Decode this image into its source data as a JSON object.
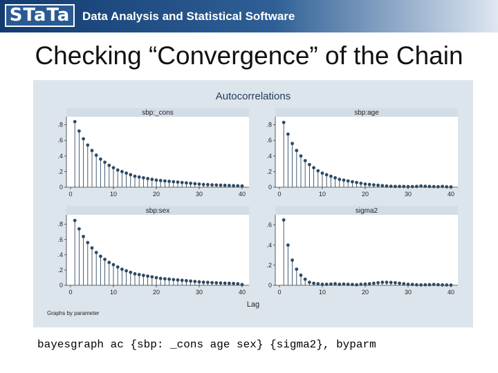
{
  "header": {
    "logo_text": "STaTa",
    "tagline": "Data Analysis and Statistical Software"
  },
  "slide": {
    "title": "Checking “Convergence” of the Chain"
  },
  "command": "bayesgraph ac {sbp: _cons age sex} {sigma2}, byparm",
  "colors": {
    "figure_bg": "#dde5ec",
    "strip_bg": "#d3dde7",
    "series": "#2e4a63",
    "title": "#1f3b5a"
  },
  "chart_data": {
    "type": "scatter",
    "style": "spike",
    "title": "Autocorrelations",
    "xlabel": "Lag",
    "note": "Graphs by parameter",
    "grid": false,
    "x": [
      1,
      2,
      3,
      4,
      5,
      6,
      7,
      8,
      9,
      10,
      11,
      12,
      13,
      14,
      15,
      16,
      17,
      18,
      19,
      20,
      21,
      22,
      23,
      24,
      25,
      26,
      27,
      28,
      29,
      30,
      31,
      32,
      33,
      34,
      35,
      36,
      37,
      38,
      39,
      40
    ],
    "xticks": [
      0,
      10,
      20,
      30,
      40
    ],
    "panels": [
      {
        "label": "sbp:_cons",
        "yticks": [
          "0",
          ".2",
          ".4",
          ".6",
          ".8"
        ],
        "ylim": [
          0,
          0.85
        ],
        "values": [
          0.84,
          0.72,
          0.62,
          0.54,
          0.47,
          0.41,
          0.36,
          0.32,
          0.28,
          0.25,
          0.22,
          0.2,
          0.18,
          0.16,
          0.14,
          0.13,
          0.12,
          0.11,
          0.1,
          0.09,
          0.085,
          0.08,
          0.075,
          0.07,
          0.065,
          0.06,
          0.055,
          0.05,
          0.045,
          0.04,
          0.035,
          0.033,
          0.03,
          0.028,
          0.026,
          0.024,
          0.022,
          0.02,
          0.018,
          0.016
        ]
      },
      {
        "label": "sbp:age",
        "yticks": [
          "0",
          ".2",
          ".4",
          ".6",
          ".8"
        ],
        "ylim": [
          0,
          0.85
        ],
        "values": [
          0.83,
          0.68,
          0.56,
          0.47,
          0.4,
          0.34,
          0.29,
          0.25,
          0.21,
          0.18,
          0.16,
          0.14,
          0.12,
          0.1,
          0.09,
          0.08,
          0.07,
          0.06,
          0.05,
          0.04,
          0.035,
          0.03,
          0.025,
          0.02,
          0.015,
          0.012,
          0.01,
          0.01,
          0.01,
          0.008,
          0.008,
          0.01,
          0.015,
          0.012,
          0.01,
          0.008,
          0.006,
          0.01,
          0.005,
          0.004
        ]
      },
      {
        "label": "sbp:sex",
        "yticks": [
          "0",
          ".2",
          ".4",
          ".6",
          ".8"
        ],
        "ylim": [
          0,
          0.87
        ],
        "values": [
          0.85,
          0.74,
          0.64,
          0.56,
          0.49,
          0.43,
          0.38,
          0.34,
          0.3,
          0.27,
          0.24,
          0.21,
          0.19,
          0.17,
          0.15,
          0.14,
          0.13,
          0.12,
          0.11,
          0.1,
          0.09,
          0.085,
          0.08,
          0.075,
          0.07,
          0.065,
          0.06,
          0.055,
          0.05,
          0.045,
          0.04,
          0.038,
          0.035,
          0.032,
          0.03,
          0.028,
          0.026,
          0.024,
          0.02,
          0.01
        ]
      },
      {
        "label": "sigma2",
        "yticks": [
          "0",
          ".2",
          ".4",
          ".6"
        ],
        "ylim": [
          0,
          0.66
        ],
        "values": [
          0.65,
          0.4,
          0.25,
          0.16,
          0.1,
          0.06,
          0.03,
          0.02,
          0.015,
          0.01,
          0.01,
          0.012,
          0.015,
          0.01,
          0.012,
          0.01,
          0.008,
          0.005,
          0.01,
          0.012,
          0.015,
          0.02,
          0.025,
          0.03,
          0.03,
          0.028,
          0.025,
          0.02,
          0.015,
          0.01,
          0.008,
          0.005,
          0.004,
          0.005,
          0.006,
          0.008,
          0.006,
          0.004,
          0.003,
          0.002
        ]
      }
    ]
  }
}
